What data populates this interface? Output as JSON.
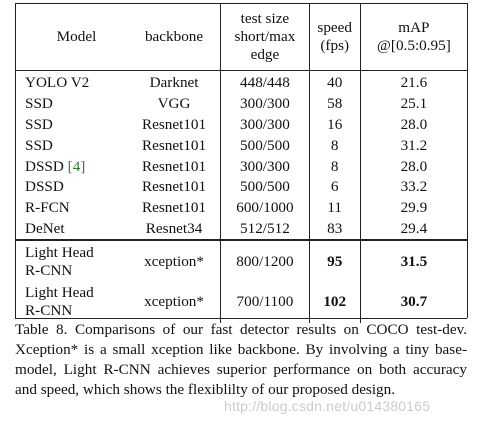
{
  "table": {
    "headers": {
      "model": "Model",
      "backbone": "backbone",
      "size_line1": "test size",
      "size_line2": "short/max",
      "size_line3": "edge",
      "speed_line1": "speed",
      "speed_line2": "(fps)",
      "map_line1": "mAP",
      "map_line2": "@[0.5:0.95]"
    },
    "fast_rows": [
      {
        "model": "YOLO V2",
        "cite": "",
        "backbone": "Darknet",
        "size": "448/448",
        "speed": "40",
        "map": "21.6"
      },
      {
        "model": "SSD",
        "cite": "",
        "backbone": "VGG",
        "size": "300/300",
        "speed": "58",
        "map": "25.1"
      },
      {
        "model": "SSD",
        "cite": "",
        "backbone": "Resnet101",
        "size": "300/300",
        "speed": "16",
        "map": "28.0"
      },
      {
        "model": "SSD",
        "cite": "",
        "backbone": "Resnet101",
        "size": "500/500",
        "speed": "8",
        "map": "31.2"
      },
      {
        "model": "DSSD ",
        "cite": "[4]",
        "backbone": "Resnet101",
        "size": "300/300",
        "speed": "8",
        "map": "28.0"
      },
      {
        "model": "DSSD",
        "cite": "",
        "backbone": "Resnet101",
        "size": "500/500",
        "speed": "6",
        "map": "33.2"
      },
      {
        "model": "R-FCN",
        "cite": "",
        "backbone": "Resnet101",
        "size": "600/1000",
        "speed": "11",
        "map": "29.9"
      },
      {
        "model": "DeNet",
        "cite": "",
        "backbone": "Resnet34",
        "size": "512/512",
        "speed": "83",
        "map": "29.4"
      }
    ],
    "light_rows": [
      {
        "model_line1": "Light Head",
        "model_line2": "R-CNN",
        "backbone": "xception*",
        "size": "800/1200",
        "speed": "95",
        "map": "31.5"
      },
      {
        "model_line1": "Light Head",
        "model_line2": "R-CNN",
        "backbone": "xception*",
        "size": "700/1100",
        "speed": "102",
        "map": "30.7"
      }
    ]
  },
  "caption": "Table 8. Comparisons of our fast detector results on COCO test-dev. Xception* is a small xception like backbone. By involving a tiny base-model, Light R-CNN achieves superior performance on both accuracy and speed, which shows the flexiblilty of our proposed design.",
  "watermark": "http://blog.csdn.net/u014380165",
  "colors": {
    "citation": "#2e7d32",
    "rule": "#222222",
    "watermark": "#a0a0a0"
  }
}
